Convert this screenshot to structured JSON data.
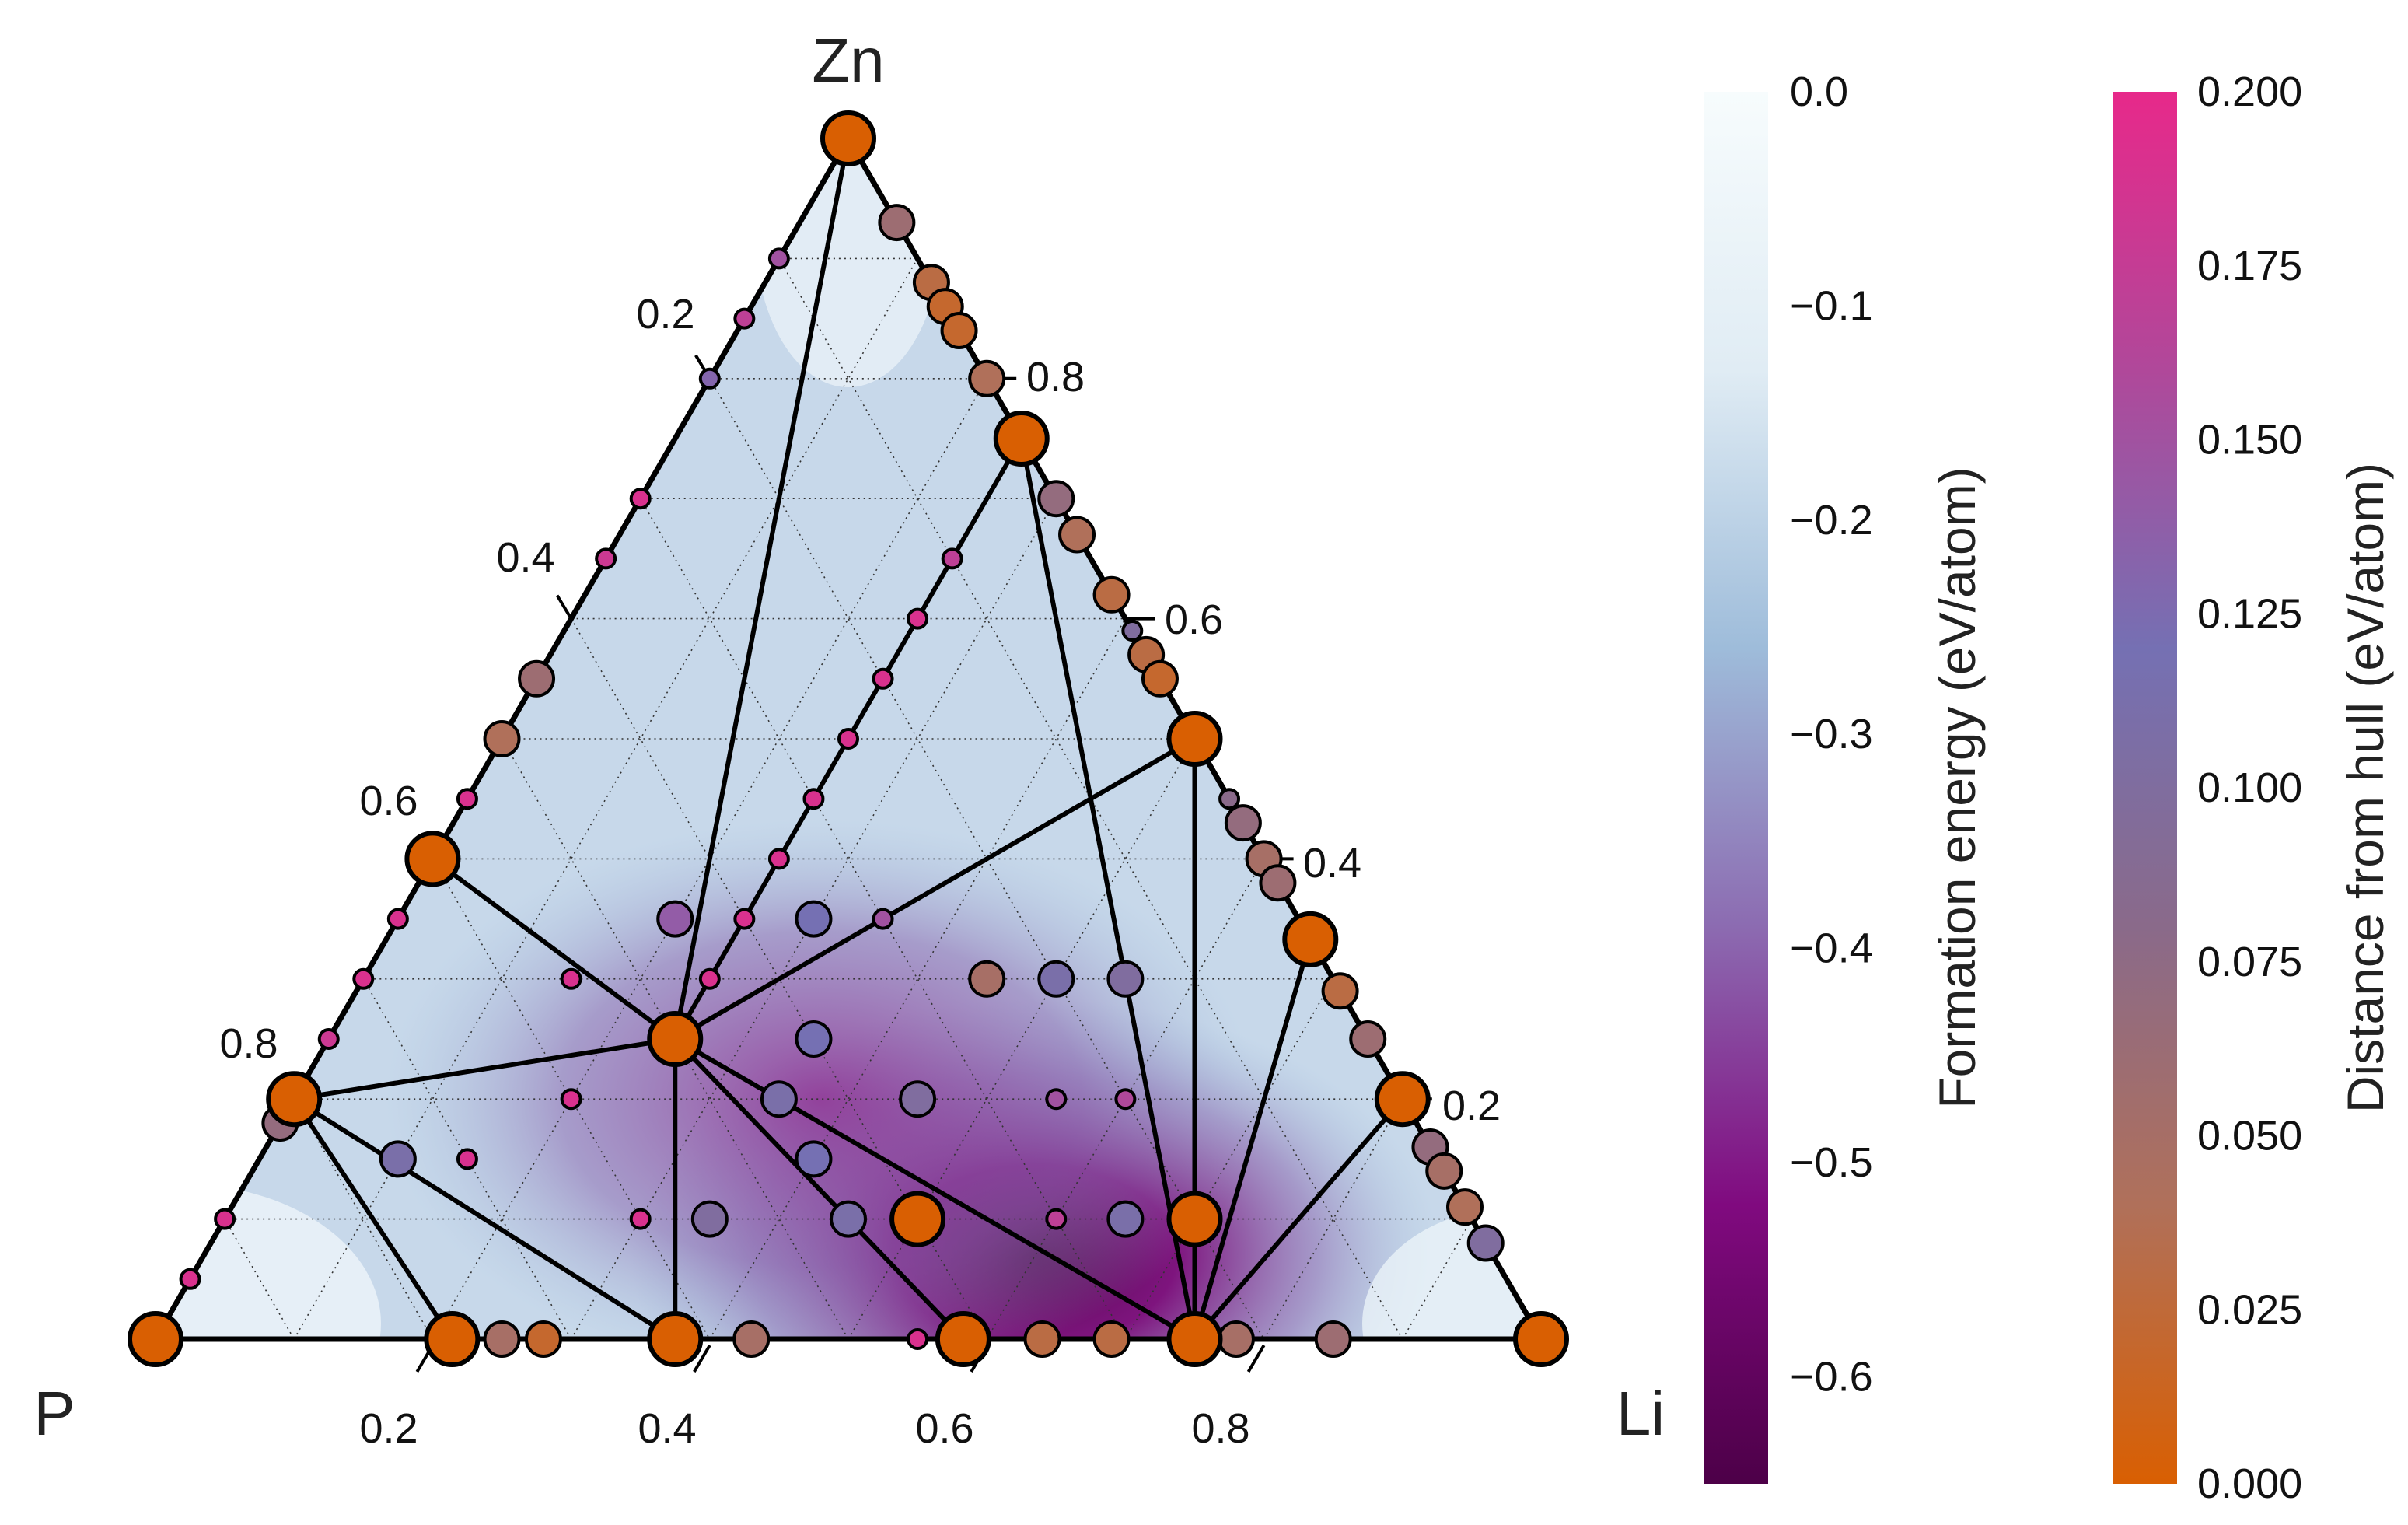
{
  "chart_data": {
    "type": "scatter",
    "subtype": "ternary-phase-diagram",
    "corners": {
      "top": "Zn",
      "left": "P",
      "right": "Li"
    },
    "ternary_ticks": {
      "bottom_li": [
        "0.2",
        "0.4",
        "0.6",
        "0.8"
      ],
      "left_zn": [
        "0.2",
        "0.4",
        "0.6",
        "0.8"
      ],
      "right_p": [
        "0.8",
        "0.6",
        "0.4",
        "0.2"
      ]
    },
    "grid": true,
    "colorbars": [
      {
        "title": "Formation energy (eV/atom)",
        "range": [
          -0.65,
          0.0
        ],
        "ticks": [
          "0.0",
          "−0.1",
          "−0.2",
          "−0.3",
          "−0.4",
          "−0.5",
          "−0.6"
        ],
        "tick_values": [
          0.0,
          -0.1,
          -0.2,
          -0.3,
          -0.4,
          -0.5,
          -0.6
        ],
        "colors": [
          "#4d0048",
          "#800a7f",
          "#8c6bb1",
          "#9ebcda",
          "#e0ecf4",
          "#f7fcfd"
        ]
      },
      {
        "title": "Distance from hull (eV/atom)",
        "range": [
          0.0,
          0.2
        ],
        "ticks": [
          "0.200",
          "0.175",
          "0.150",
          "0.125",
          "0.100",
          "0.075",
          "0.050",
          "0.025",
          "0.000"
        ],
        "tick_values": [
          0.2,
          0.175,
          0.15,
          0.125,
          0.1,
          0.075,
          0.05,
          0.025,
          0.0
        ],
        "colors": [
          "#d95f02",
          "#b0705a",
          "#8a6a8a",
          "#7570b3",
          "#b0489a",
          "#e7298a"
        ]
      }
    ],
    "stable_phases": [
      {
        "li": 0.0,
        "p": 0.0,
        "zn": 1.0
      },
      {
        "li": 0.0,
        "p": 1.0,
        "zn": 0.0
      },
      {
        "li": 1.0,
        "p": 0.0,
        "zn": 0.0
      },
      {
        "li": 0.0,
        "p": 0.6,
        "zn": 0.4
      },
      {
        "li": 0.0,
        "p": 0.8,
        "zn": 0.2
      },
      {
        "li": 0.25,
        "p": 0.0,
        "zn": 0.75
      },
      {
        "li": 0.5,
        "p": 0.0,
        "zn": 0.5
      },
      {
        "li": 0.667,
        "p": 0.0,
        "zn": 0.333
      },
      {
        "li": 0.8,
        "p": 0.0,
        "zn": 0.2
      },
      {
        "li": 0.25,
        "p": 0.5,
        "zn": 0.25
      },
      {
        "li": 0.214,
        "p": 0.786,
        "zn": 0.0
      },
      {
        "li": 0.375,
        "p": 0.625,
        "zn": 0.0
      },
      {
        "li": 0.583,
        "p": 0.417,
        "zn": 0.0
      },
      {
        "li": 0.75,
        "p": 0.25,
        "zn": 0.0
      },
      {
        "li": 0.7,
        "p": 0.2,
        "zn": 0.1
      },
      {
        "li": 0.5,
        "p": 0.4,
        "zn": 0.1
      }
    ],
    "hull_tielines": [
      [
        [
          0,
          0,
          1
        ],
        [
          0.25,
          0.5,
          0.25
        ]
      ],
      [
        [
          0,
          0,
          1
        ],
        [
          0.25,
          0,
          0.75
        ]
      ],
      [
        [
          0,
          0.6,
          0.4
        ],
        [
          0.25,
          0.5,
          0.25
        ]
      ],
      [
        [
          0,
          0.8,
          0.2
        ],
        [
          0.25,
          0.5,
          0.25
        ]
      ],
      [
        [
          0,
          0.8,
          0.2
        ],
        [
          0.214,
          0.786,
          0
        ]
      ],
      [
        [
          0,
          0.8,
          0.2
        ],
        [
          0.375,
          0.625,
          0
        ]
      ],
      [
        [
          0.25,
          0.5,
          0.25
        ],
        [
          0.375,
          0.625,
          0
        ]
      ],
      [
        [
          0.25,
          0.5,
          0.25
        ],
        [
          0.583,
          0.417,
          0
        ]
      ],
      [
        [
          0.25,
          0.5,
          0.25
        ],
        [
          0.75,
          0.25,
          0
        ]
      ],
      [
        [
          0.25,
          0.5,
          0.25
        ],
        [
          0.25,
          0,
          0.75
        ]
      ],
      [
        [
          0.25,
          0.5,
          0.25
        ],
        [
          0.5,
          0,
          0.5
        ]
      ],
      [
        [
          0.25,
          0,
          0.75
        ],
        [
          0.75,
          0.25,
          0
        ]
      ],
      [
        [
          0.5,
          0,
          0.5
        ],
        [
          0.75,
          0.25,
          0
        ]
      ],
      [
        [
          0.667,
          0,
          0.333
        ],
        [
          0.75,
          0.25,
          0
        ]
      ],
      [
        [
          0.8,
          0,
          0.2
        ],
        [
          0.75,
          0.25,
          0
        ]
      ],
      [
        [
          0.75,
          0.25,
          0
        ],
        [
          1,
          0,
          0
        ]
      ]
    ],
    "unstable_points": [
      {
        "li": 0.0,
        "p": 0.1,
        "zn": 0.9,
        "e_hull": 0.15,
        "size": "small"
      },
      {
        "li": 0.0,
        "p": 0.15,
        "zn": 0.85,
        "e_hull": 0.17,
        "size": "small"
      },
      {
        "li": 0.0,
        "p": 0.2,
        "zn": 0.8,
        "e_hull": 0.13,
        "size": "small"
      },
      {
        "li": 0.0,
        "p": 0.3,
        "zn": 0.7,
        "e_hull": 0.19,
        "size": "small"
      },
      {
        "li": 0.0,
        "p": 0.35,
        "zn": 0.65,
        "e_hull": 0.18,
        "size": "small"
      },
      {
        "li": 0.0,
        "p": 0.45,
        "zn": 0.55,
        "e_hull": 0.06,
        "size": "medium"
      },
      {
        "li": 0.0,
        "p": 0.5,
        "zn": 0.5,
        "e_hull": 0.04,
        "size": "medium"
      },
      {
        "li": 0.0,
        "p": 0.55,
        "zn": 0.45,
        "e_hull": 0.19,
        "size": "small"
      },
      {
        "li": 0.0,
        "p": 0.65,
        "zn": 0.35,
        "e_hull": 0.19,
        "size": "small"
      },
      {
        "li": 0.0,
        "p": 0.7,
        "zn": 0.3,
        "e_hull": 0.19,
        "size": "small"
      },
      {
        "li": 0.0,
        "p": 0.75,
        "zn": 0.25,
        "e_hull": 0.18,
        "size": "small"
      },
      {
        "li": 0.0,
        "p": 0.82,
        "zn": 0.18,
        "e_hull": 0.07,
        "size": "medium"
      },
      {
        "li": 0.0,
        "p": 0.9,
        "zn": 0.1,
        "e_hull": 0.19,
        "size": "small"
      },
      {
        "li": 0.0,
        "p": 0.95,
        "zn": 0.05,
        "e_hull": 0.19,
        "size": "small"
      },
      {
        "li": 0.07,
        "p": 0.0,
        "zn": 0.93,
        "e_hull": 0.06,
        "size": "medium"
      },
      {
        "li": 0.12,
        "p": 0.0,
        "zn": 0.88,
        "e_hull": 0.03,
        "size": "medium"
      },
      {
        "li": 0.14,
        "p": 0.0,
        "zn": 0.86,
        "e_hull": 0.02,
        "size": "medium"
      },
      {
        "li": 0.16,
        "p": 0.0,
        "zn": 0.84,
        "e_hull": 0.02,
        "size": "medium"
      },
      {
        "li": 0.2,
        "p": 0.0,
        "zn": 0.8,
        "e_hull": 0.04,
        "size": "medium"
      },
      {
        "li": 0.3,
        "p": 0.0,
        "zn": 0.7,
        "e_hull": 0.07,
        "size": "medium"
      },
      {
        "li": 0.33,
        "p": 0.0,
        "zn": 0.67,
        "e_hull": 0.04,
        "size": "medium"
      },
      {
        "li": 0.38,
        "p": 0.0,
        "zn": 0.62,
        "e_hull": 0.03,
        "size": "medium"
      },
      {
        "li": 0.41,
        "p": 0.0,
        "zn": 0.59,
        "e_hull": 0.1,
        "size": "small"
      },
      {
        "li": 0.43,
        "p": 0.0,
        "zn": 0.57,
        "e_hull": 0.03,
        "size": "medium"
      },
      {
        "li": 0.45,
        "p": 0.0,
        "zn": 0.55,
        "e_hull": 0.02,
        "size": "medium"
      },
      {
        "li": 0.55,
        "p": 0.0,
        "zn": 0.45,
        "e_hull": 0.08,
        "size": "small"
      },
      {
        "li": 0.57,
        "p": 0.0,
        "zn": 0.43,
        "e_hull": 0.07,
        "size": "medium"
      },
      {
        "li": 0.6,
        "p": 0.0,
        "zn": 0.4,
        "e_hull": 0.05,
        "size": "medium"
      },
      {
        "li": 0.62,
        "p": 0.0,
        "zn": 0.38,
        "e_hull": 0.06,
        "size": "medium"
      },
      {
        "li": 0.71,
        "p": 0.0,
        "zn": 0.29,
        "e_hull": 0.03,
        "size": "medium"
      },
      {
        "li": 0.75,
        "p": 0.0,
        "zn": 0.25,
        "e_hull": 0.06,
        "size": "medium"
      },
      {
        "li": 0.84,
        "p": 0.0,
        "zn": 0.16,
        "e_hull": 0.07,
        "size": "medium"
      },
      {
        "li": 0.86,
        "p": 0.0,
        "zn": 0.14,
        "e_hull": 0.05,
        "size": "medium"
      },
      {
        "li": 0.89,
        "p": 0.0,
        "zn": 0.11,
        "e_hull": 0.04,
        "size": "medium"
      },
      {
        "li": 0.92,
        "p": 0.0,
        "zn": 0.08,
        "e_hull": 0.1,
        "size": "medium"
      },
      {
        "li": 0.25,
        "p": 0.75,
        "zn": 0.0,
        "e_hull": 0.05,
        "size": "medium"
      },
      {
        "li": 0.28,
        "p": 0.72,
        "zn": 0.0,
        "e_hull": 0.02,
        "size": "medium"
      },
      {
        "li": 0.43,
        "p": 0.57,
        "zn": 0.0,
        "e_hull": 0.05,
        "size": "medium"
      },
      {
        "li": 0.55,
        "p": 0.45,
        "zn": 0.0,
        "e_hull": 0.19,
        "size": "small"
      },
      {
        "li": 0.64,
        "p": 0.36,
        "zn": 0.0,
        "e_hull": 0.03,
        "size": "medium"
      },
      {
        "li": 0.69,
        "p": 0.31,
        "zn": 0.0,
        "e_hull": 0.03,
        "size": "medium"
      },
      {
        "li": 0.78,
        "p": 0.22,
        "zn": 0.0,
        "e_hull": 0.05,
        "size": "medium"
      },
      {
        "li": 0.85,
        "p": 0.15,
        "zn": 0.0,
        "e_hull": 0.06,
        "size": "medium"
      },
      {
        "li": 0.25,
        "p": 0.45,
        "zn": 0.3,
        "e_hull": 0.19,
        "size": "small"
      },
      {
        "li": 0.25,
        "p": 0.4,
        "zn": 0.35,
        "e_hull": 0.19,
        "size": "small"
      },
      {
        "li": 0.25,
        "p": 0.35,
        "zn": 0.4,
        "e_hull": 0.19,
        "size": "small"
      },
      {
        "li": 0.25,
        "p": 0.3,
        "zn": 0.45,
        "e_hull": 0.19,
        "size": "small"
      },
      {
        "li": 0.25,
        "p": 0.25,
        "zn": 0.5,
        "e_hull": 0.19,
        "size": "small"
      },
      {
        "li": 0.25,
        "p": 0.2,
        "zn": 0.55,
        "e_hull": 0.19,
        "size": "small"
      },
      {
        "li": 0.25,
        "p": 0.15,
        "zn": 0.6,
        "e_hull": 0.19,
        "size": "small"
      },
      {
        "li": 0.25,
        "p": 0.1,
        "zn": 0.65,
        "e_hull": 0.17,
        "size": "small"
      },
      {
        "li": 0.35,
        "p": 0.4,
        "zn": 0.25,
        "e_hull": 0.12,
        "size": "medium"
      },
      {
        "li": 0.35,
        "p": 0.45,
        "zn": 0.2,
        "e_hull": 0.11,
        "size": "medium"
      },
      {
        "li": 0.4,
        "p": 0.45,
        "zn": 0.15,
        "e_hull": 0.12,
        "size": "medium"
      },
      {
        "li": 0.45,
        "p": 0.35,
        "zn": 0.2,
        "e_hull": 0.1,
        "size": "medium"
      },
      {
        "li": 0.45,
        "p": 0.25,
        "zn": 0.3,
        "e_hull": 0.05,
        "size": "medium"
      },
      {
        "li": 0.55,
        "p": 0.25,
        "zn": 0.2,
        "e_hull": 0.15,
        "size": "small"
      },
      {
        "li": 0.5,
        "p": 0.2,
        "zn": 0.3,
        "e_hull": 0.11,
        "size": "medium"
      },
      {
        "li": 0.55,
        "p": 0.15,
        "zn": 0.3,
        "e_hull": 0.1,
        "size": "medium"
      },
      {
        "li": 0.6,
        "p": 0.2,
        "zn": 0.2,
        "e_hull": 0.16,
        "size": "small"
      },
      {
        "li": 0.15,
        "p": 0.55,
        "zn": 0.3,
        "e_hull": 0.19,
        "size": "small"
      },
      {
        "li": 0.2,
        "p": 0.6,
        "zn": 0.2,
        "e_hull": 0.19,
        "size": "small"
      },
      {
        "li": 0.15,
        "p": 0.7,
        "zn": 0.15,
        "e_hull": 0.19,
        "size": "small"
      },
      {
        "li": 0.3,
        "p": 0.6,
        "zn": 0.1,
        "e_hull": 0.19,
        "size": "small"
      },
      {
        "li": 0.35,
        "p": 0.55,
        "zn": 0.1,
        "e_hull": 0.1,
        "size": "medium"
      },
      {
        "li": 0.3,
        "p": 0.35,
        "zn": 0.35,
        "e_hull": 0.12,
        "size": "medium"
      },
      {
        "li": 0.2,
        "p": 0.45,
        "zn": 0.35,
        "e_hull": 0.14,
        "size": "medium"
      },
      {
        "li": 0.1,
        "p": 0.75,
        "zn": 0.15,
        "e_hull": 0.11,
        "size": "medium"
      },
      {
        "li": 0.45,
        "p": 0.45,
        "zn": 0.1,
        "e_hull": 0.11,
        "size": "medium"
      },
      {
        "li": 0.6,
        "p": 0.3,
        "zn": 0.1,
        "e_hull": 0.17,
        "size": "small"
      },
      {
        "li": 0.65,
        "p": 0.25,
        "zn": 0.1,
        "e_hull": 0.11,
        "size": "medium"
      },
      {
        "li": 0.35,
        "p": 0.3,
        "zn": 0.35,
        "e_hull": 0.15,
        "size": "small"
      }
    ]
  }
}
